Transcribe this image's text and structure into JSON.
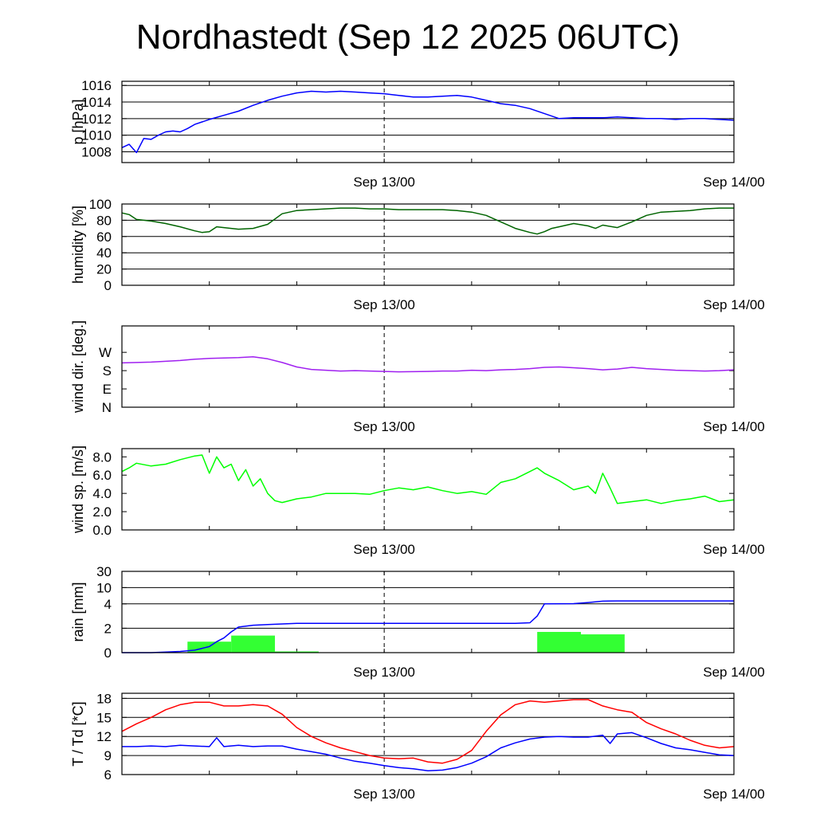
{
  "title": "Nordhastedt (Sep 12 2025 06UTC)",
  "time_axis": {
    "unit": "hours since Sep 12 06UTC",
    "range": [
      0,
      42
    ],
    "tick_labels": [
      {
        "x": 18,
        "label": "Sep 13/00"
      },
      {
        "x": 42,
        "label": "Sep 14/00"
      }
    ]
  },
  "chart_data": [
    {
      "type": "line",
      "ylabel": "p [hPa]",
      "ylim": [
        1006.7,
        1016.5
      ],
      "yticks": [
        1008,
        1010,
        1012,
        1014,
        1016
      ],
      "grid": true,
      "series": [
        {
          "color": "#0000ff",
          "x": [
            0,
            0.5,
            1,
            1.5,
            2,
            2.5,
            3,
            3.5,
            4,
            4.5,
            5,
            5.5,
            6,
            7,
            8,
            9,
            10,
            11,
            12,
            13,
            14,
            15,
            16,
            17,
            18,
            19,
            20,
            21,
            22,
            23,
            24,
            25,
            26,
            27,
            28,
            29,
            30,
            31,
            32,
            33,
            34,
            35,
            36,
            37,
            38,
            39,
            40,
            41,
            42
          ],
          "y": [
            1008.5,
            1008.9,
            1007.9,
            1009.6,
            1009.5,
            1010.0,
            1010.4,
            1010.5,
            1010.4,
            1010.8,
            1011.3,
            1011.6,
            1011.9,
            1012.4,
            1012.9,
            1013.6,
            1014.2,
            1014.7,
            1015.1,
            1015.3,
            1015.2,
            1015.3,
            1015.2,
            1015.1,
            1015.0,
            1014.8,
            1014.6,
            1014.6,
            1014.7,
            1014.8,
            1014.6,
            1014.2,
            1013.8,
            1013.6,
            1013.2,
            1012.6,
            1012.0,
            1012.1,
            1012.1,
            1012.1,
            1012.2,
            1012.1,
            1012.0,
            1012.0,
            1011.9,
            1012.0,
            1012.0,
            1011.9,
            1011.8
          ]
        }
      ]
    },
    {
      "type": "line",
      "ylabel": "humidity [%]",
      "ylim": [
        0,
        100
      ],
      "yticks": [
        0,
        20,
        40,
        60,
        80,
        100
      ],
      "grid": true,
      "series": [
        {
          "color": "#006400",
          "x": [
            0,
            0.5,
            1,
            2,
            3,
            4,
            5,
            5.5,
            6,
            6.5,
            7,
            7.5,
            8,
            9,
            10,
            11,
            12,
            13,
            14,
            15,
            16,
            17,
            18,
            19,
            20,
            21,
            22,
            23,
            24,
            25,
            26,
            27,
            28,
            28.5,
            29,
            29.5,
            30,
            31,
            32,
            32.5,
            33,
            34,
            35,
            36,
            37,
            38,
            39,
            40,
            41,
            42
          ],
          "y": [
            89,
            87,
            81,
            79,
            76,
            72,
            67,
            65,
            66,
            72,
            71,
            70,
            69,
            70,
            75,
            88,
            92,
            93,
            94,
            95,
            95,
            94,
            94,
            93,
            93,
            93,
            93,
            92,
            90,
            86,
            78,
            70,
            65,
            63,
            66,
            70,
            72,
            76,
            73,
            70,
            74,
            71,
            78,
            86,
            90,
            91,
            92,
            94,
            95,
            95
          ]
        }
      ]
    },
    {
      "type": "line",
      "ylabel": "wind dir. [deg.]",
      "ylim": [
        0,
        400
      ],
      "yticks": [
        0,
        90,
        180,
        270
      ],
      "ytick_labels": [
        "N",
        "E",
        "S",
        "W"
      ],
      "grid": false,
      "series": [
        {
          "color": "#a020f0",
          "x": [
            0,
            1,
            2,
            3,
            4,
            5,
            6,
            7,
            8,
            9,
            10,
            11,
            12,
            13,
            14,
            15,
            16,
            17,
            18,
            19,
            20,
            21,
            22,
            23,
            24,
            25,
            26,
            27,
            28,
            29,
            30,
            31,
            32,
            33,
            34,
            35,
            36,
            37,
            38,
            39,
            40,
            41,
            42
          ],
          "y": [
            218,
            220,
            222,
            226,
            230,
            236,
            240,
            242,
            244,
            248,
            238,
            220,
            198,
            186,
            182,
            178,
            180,
            178,
            176,
            174,
            175,
            176,
            178,
            178,
            182,
            180,
            184,
            186,
            190,
            196,
            198,
            194,
            190,
            184,
            188,
            196,
            190,
            186,
            182,
            180,
            178,
            180,
            184
          ]
        }
      ]
    },
    {
      "type": "line",
      "ylabel": "wind sp. [m/s]",
      "ylim": [
        0,
        8.9
      ],
      "yticks": [
        0,
        2,
        4,
        6,
        8
      ],
      "ytick_labels": [
        "0.0",
        "2.0",
        "4.0",
        "6.0",
        "8.0"
      ],
      "grid": false,
      "series": [
        {
          "color": "#00ff00",
          "x": [
            0,
            0.5,
            1,
            2,
            3,
            4,
            5,
            5.5,
            6,
            6.5,
            7,
            7.5,
            8,
            8.5,
            9,
            9.5,
            10,
            10.5,
            11,
            12,
            13,
            14,
            15,
            16,
            17,
            18,
            19,
            20,
            21,
            22,
            23,
            24,
            25,
            26,
            27,
            28,
            28.5,
            29,
            30,
            31,
            32,
            32.5,
            33,
            33.5,
            34,
            35,
            36,
            37,
            38,
            39,
            40,
            41,
            42
          ],
          "y": [
            6.4,
            6.8,
            7.3,
            7.0,
            7.2,
            7.7,
            8.1,
            8.2,
            6.2,
            8.0,
            6.8,
            7.2,
            5.4,
            6.6,
            4.8,
            5.6,
            4.0,
            3.2,
            3.0,
            3.4,
            3.6,
            4.0,
            4.0,
            4.0,
            3.9,
            4.3,
            4.6,
            4.4,
            4.7,
            4.3,
            4.0,
            4.2,
            3.9,
            5.2,
            5.6,
            6.4,
            6.8,
            6.2,
            5.4,
            4.4,
            4.8,
            4.0,
            6.2,
            4.6,
            2.9,
            3.1,
            3.3,
            2.9,
            3.2,
            3.4,
            3.7,
            3.1,
            3.3
          ]
        }
      ]
    },
    {
      "type": "bar",
      "ylabel": "rain [mm]",
      "yscale": "nonlinear",
      "yticks": [
        0,
        2,
        4,
        10,
        30
      ],
      "grid": true,
      "series": [
        {
          "color": "#33ff33",
          "bars": [
            {
              "x": [
                4.5,
                7.5
              ],
              "y": 0.9
            },
            {
              "x": [
                7.5,
                10.5
              ],
              "y": 1.4
            },
            {
              "x": [
                10.5,
                13.5
              ],
              "y": 0.1
            },
            {
              "x": [
                28.5,
                31.5
              ],
              "y": 1.7
            },
            {
              "x": [
                31.5,
                34.5
              ],
              "y": 1.5
            }
          ]
        },
        {
          "color": "#0000ff",
          "x": [
            0,
            2,
            3,
            4,
            5,
            6,
            6.5,
            7,
            7.5,
            8,
            9,
            10,
            11,
            12,
            14,
            16,
            18,
            20,
            22,
            24,
            26,
            27,
            28,
            28.5,
            29,
            30,
            31,
            32,
            33,
            34,
            36,
            38,
            40,
            42
          ],
          "y": [
            0,
            0,
            0.05,
            0.1,
            0.2,
            0.5,
            0.9,
            1.2,
            1.7,
            2.1,
            2.25,
            2.3,
            2.35,
            2.4,
            2.4,
            2.4,
            2.4,
            2.4,
            2.4,
            2.4,
            2.4,
            2.4,
            2.45,
            3.0,
            4.0,
            4.05,
            4.1,
            4.5,
            5.0,
            5.1,
            5.1,
            5.1,
            5.1,
            5.1
          ]
        }
      ]
    },
    {
      "type": "line",
      "ylabel": "T / Td [*C]",
      "ylim": [
        6,
        18.8
      ],
      "yticks": [
        6,
        9,
        12,
        15,
        18
      ],
      "grid": true,
      "series": [
        {
          "color": "#ff0000",
          "x": [
            0,
            1,
            2,
            3,
            4,
            5,
            6,
            7,
            8,
            9,
            10,
            11,
            12,
            13,
            14,
            15,
            16,
            17,
            18,
            19,
            20,
            21,
            22,
            23,
            24,
            25,
            26,
            27,
            28,
            29,
            30,
            31,
            32,
            33,
            34,
            35,
            36,
            37,
            38,
            39,
            40,
            41,
            42
          ],
          "y": [
            12.8,
            14.0,
            15.0,
            16.2,
            17.0,
            17.4,
            17.4,
            16.8,
            16.8,
            17.0,
            16.8,
            15.5,
            13.4,
            12.0,
            11.0,
            10.2,
            9.6,
            9.0,
            8.6,
            8.5,
            8.6,
            8.0,
            7.8,
            8.4,
            9.8,
            12.8,
            15.4,
            17.0,
            17.6,
            17.4,
            17.6,
            17.8,
            17.8,
            16.8,
            16.2,
            15.8,
            14.2,
            13.2,
            12.4,
            11.4,
            10.6,
            10.2,
            10.4
          ]
        },
        {
          "color": "#0000ff",
          "x": [
            0,
            1,
            2,
            3,
            4,
            5,
            6,
            6.5,
            7,
            8,
            9,
            10,
            11,
            12,
            13,
            14,
            15,
            16,
            17,
            18,
            19,
            20,
            21,
            22,
            23,
            24,
            25,
            26,
            27,
            28,
            29,
            30,
            31,
            32,
            33,
            33.5,
            34,
            35,
            36,
            37,
            38,
            39,
            40,
            41,
            42
          ],
          "y": [
            10.4,
            10.4,
            10.5,
            10.4,
            10.6,
            10.5,
            10.4,
            11.8,
            10.4,
            10.6,
            10.4,
            10.5,
            10.5,
            10.0,
            9.6,
            9.2,
            8.6,
            8.1,
            7.8,
            7.4,
            7.1,
            6.9,
            6.6,
            6.7,
            7.1,
            7.8,
            8.8,
            10.2,
            11.0,
            11.6,
            11.9,
            12.0,
            11.9,
            11.9,
            12.2,
            10.9,
            12.4,
            12.6,
            11.8,
            10.9,
            10.2,
            9.9,
            9.5,
            9.1,
            9.0
          ]
        }
      ]
    }
  ]
}
